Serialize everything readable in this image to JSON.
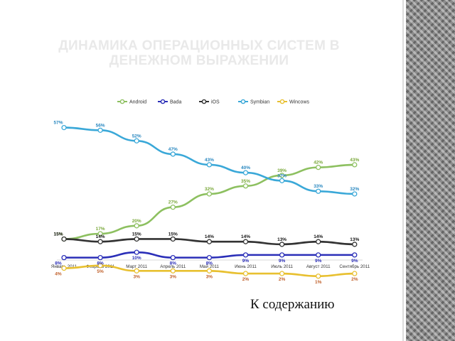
{
  "slide": {
    "title": "ДИНАМИКА ОПЕРАЦИОННЫХ СИСТЕМ В ДЕНЕЖНОМ ВЫРАЖЕНИИ",
    "nav_link": "К содержанию"
  },
  "colors": {
    "title": "#e9e9e9",
    "strip": "#8c8c8c"
  },
  "chart_data": {
    "type": "line",
    "title": "",
    "xlabel": "",
    "ylabel": "",
    "ylim": [
      0,
      60
    ],
    "grid": false,
    "legend_position": "top",
    "categories": [
      "Январь 2011",
      "Февраль 2011",
      "Март 2011",
      "Апрель 2011",
      "Май 2011",
      "Июнь 2011",
      "Июль 2011",
      "Август 2011",
      "Сентябрь 2011"
    ],
    "series": [
      {
        "name": "Android",
        "color": "#8dc060",
        "label_color": "#7aa83a",
        "values": [
          15,
          17,
          20,
          27,
          32,
          35,
          39,
          42,
          43
        ]
      },
      {
        "name": "Bada",
        "color": "#2b2fb8",
        "label_color": "#2b2fb8",
        "values": [
          8,
          8,
          10,
          8,
          8,
          9,
          9,
          9,
          9
        ]
      },
      {
        "name": "iOS",
        "color": "#333333",
        "label_color": "#111111",
        "values": [
          15,
          14,
          15,
          15,
          14,
          14,
          13,
          14,
          13
        ]
      },
      {
        "name": "Symbian",
        "color": "#3aa8d8",
        "label_color": "#2a88c0",
        "values": [
          57,
          56,
          52,
          47,
          43,
          40,
          37,
          33,
          32
        ]
      },
      {
        "name": "Wincows",
        "color": "#e8c030",
        "label_color": "#c0602a",
        "values": [
          4,
          5,
          3,
          3,
          3,
          2,
          2,
          1,
          2
        ]
      }
    ]
  }
}
